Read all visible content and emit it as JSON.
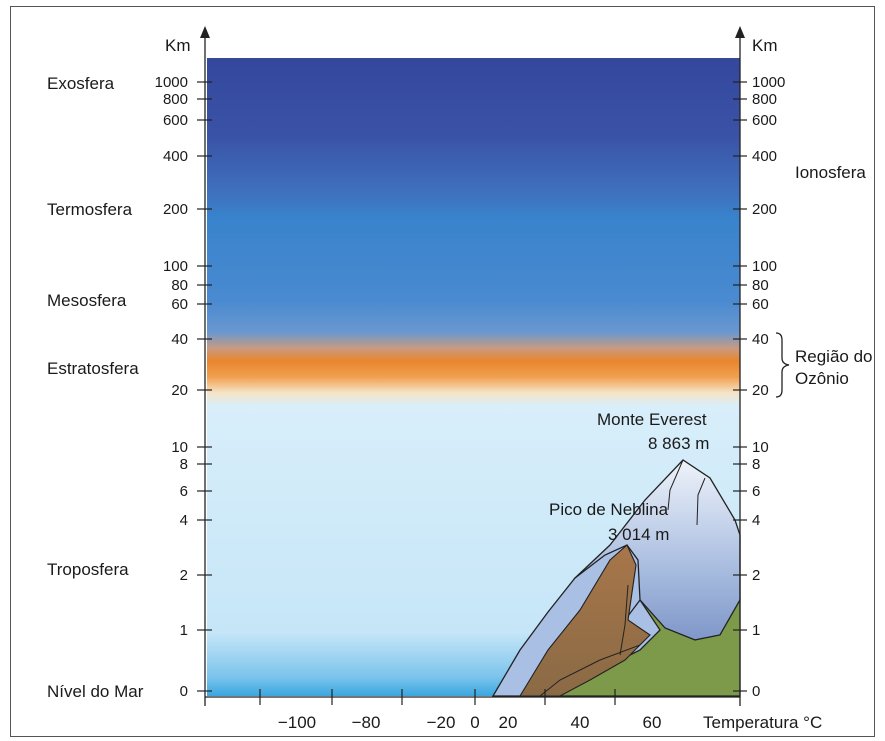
{
  "axis": {
    "left_unit": "Km",
    "right_unit": "Km",
    "x_label": "Temperatura °C"
  },
  "left_ticks": [
    "1000",
    "800",
    "600",
    "400",
    "200",
    "100",
    "80",
    "60",
    "40",
    "20",
    "10",
    "8",
    "6",
    "4",
    "2",
    "1",
    "0"
  ],
  "right_ticks": [
    "1000",
    "800",
    "600",
    "400",
    "200",
    "100",
    "80",
    "60",
    "40",
    "20",
    "10",
    "8",
    "6",
    "4",
    "2",
    "1",
    "0"
  ],
  "x_ticks": [
    "−100",
    "−80",
    "−20",
    "0",
    "20",
    "40",
    "60"
  ],
  "layers": {
    "exosfera": "Exosfera",
    "termosfera": "Termosfera",
    "mesosfera": "Mesosfera",
    "estratosfera": "Estratosfera",
    "troposfera": "Troposfera",
    "nivel_mar": "Nível do Mar"
  },
  "right_labels": {
    "ionosfera": "Ionosfera",
    "ozonio_line1": "Região do",
    "ozonio_line2": "Ozônio"
  },
  "peaks": {
    "everest_name": "Monte Everest",
    "everest_height": "8 863 m",
    "neblina_name": "Pico de Neblina",
    "neblina_height": "3 014 m"
  },
  "colors": {
    "upper_atmosphere": "#3a55a8",
    "ozone_band": "#e8862e",
    "troposphere": "#cfeafa",
    "sea_level": "#3aa6e0"
  }
}
